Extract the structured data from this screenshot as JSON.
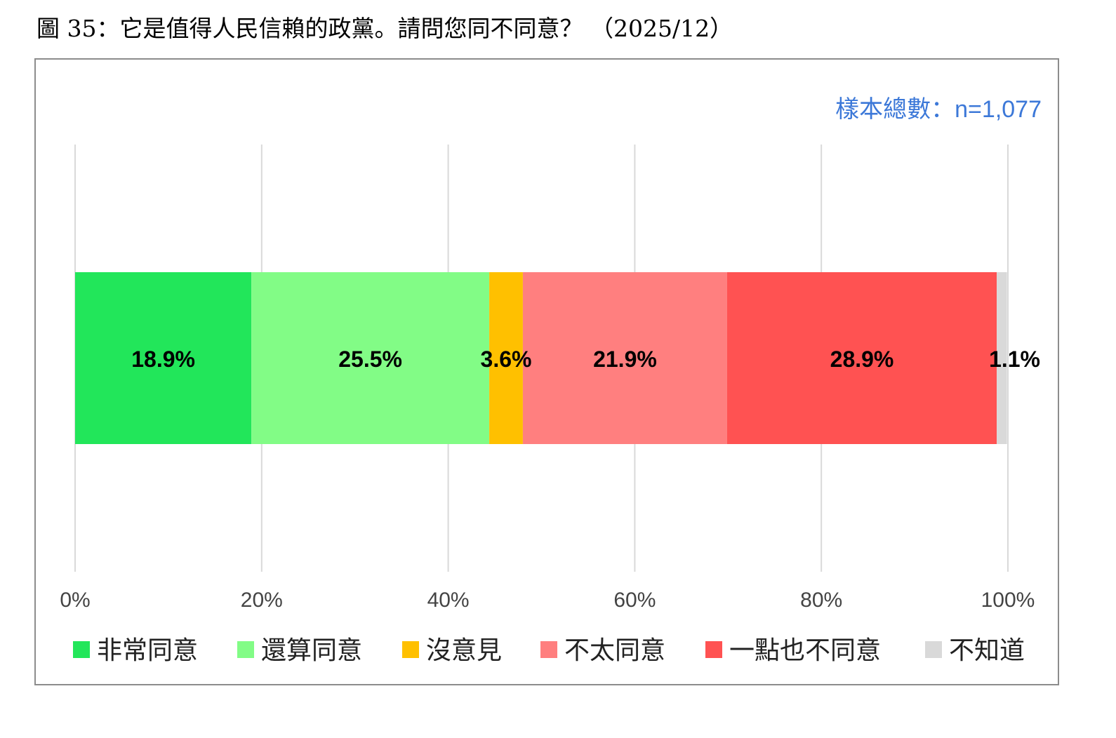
{
  "caption": "圖 35：它是值得人民信賴的政黨。請問您同不同意？ （2025/12）",
  "sample_note": "樣本總數：n=1,077",
  "colors": {
    "very_agree": "#22e65a",
    "somewhat_agree": "#82fc86",
    "no_opinion": "#ffc000",
    "somewhat_disagree": "#ff7f7f",
    "strongly_disagree": "#ff5252",
    "dont_know": "#d9d9d9",
    "note": "#3c78d8",
    "grid": "#d9d9d9"
  },
  "chart_data": {
    "type": "bar",
    "orientation": "horizontal",
    "stacked": true,
    "xlim": [
      0,
      100
    ],
    "x_ticks": [
      "0%",
      "20%",
      "40%",
      "60%",
      "80%",
      "100%"
    ],
    "grid": true,
    "legend_position": "bottom",
    "series": [
      {
        "name": "非常同意",
        "value": 18.9,
        "label": "18.9%",
        "color": "#22e65a"
      },
      {
        "name": "還算同意",
        "value": 25.5,
        "label": "25.5%",
        "color": "#82fc86"
      },
      {
        "name": "沒意見",
        "value": 3.6,
        "label": "3.6%",
        "color": "#ffc000"
      },
      {
        "name": "不太同意",
        "value": 21.9,
        "label": "21.9%",
        "color": "#ff7f7f"
      },
      {
        "name": "一點也不同意",
        "value": 28.9,
        "label": "28.9%",
        "color": "#ff5252"
      },
      {
        "name": "不知道",
        "value": 1.1,
        "label": "1.1%",
        "color": "#d9d9d9"
      }
    ]
  }
}
